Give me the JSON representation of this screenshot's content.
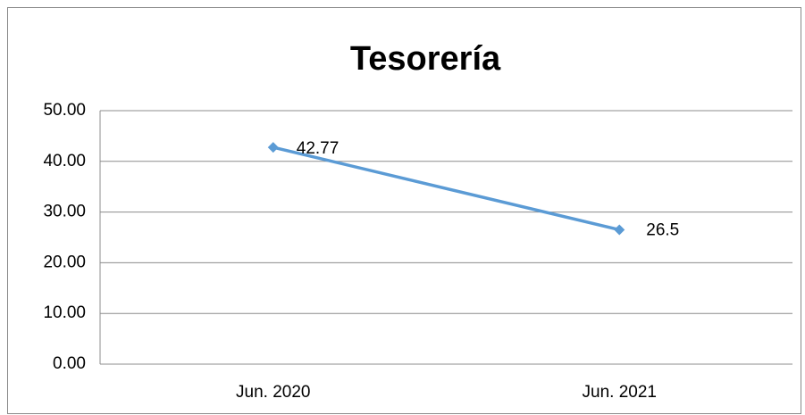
{
  "chart_data": {
    "type": "line",
    "title": "Tesorería",
    "categories": [
      "Jun. 2020",
      "Jun. 2021"
    ],
    "values": [
      42.77,
      26.5
    ],
    "color": "#5b9bd5",
    "ylim": [
      0,
      50
    ],
    "yticks": [
      {
        "value": 0,
        "label": "0.00"
      },
      {
        "value": 10,
        "label": "10.00"
      },
      {
        "value": 20,
        "label": "20.00"
      },
      {
        "value": 30,
        "label": "30.00"
      },
      {
        "value": 40,
        "label": "40.00"
      },
      {
        "value": 50,
        "label": "50.00"
      }
    ],
    "grid": true
  }
}
